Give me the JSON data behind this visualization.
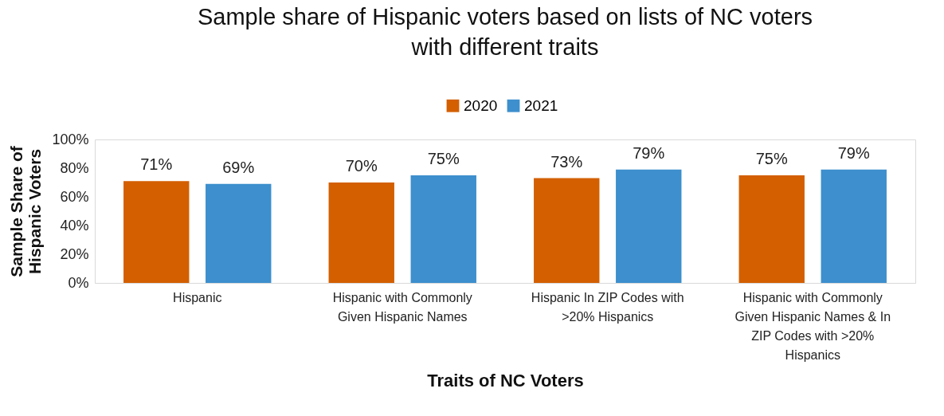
{
  "chart_data": {
    "type": "bar",
    "title": "Sample share of Hispanic voters based on lists of NC voters with different traits",
    "xlabel": "Traits of NC Voters",
    "ylabel": "Sample Share of Hispanic Voters",
    "categories": [
      "Hispanic",
      "Hispanic with Commonly Given Hispanic Names",
      "Hispanic In ZIP Codes with >20% Hispanics",
      "Hispanic with Commonly Given Hispanic Names & In ZIP Codes with >20% Hispanics"
    ],
    "series": [
      {
        "name": "2020",
        "color": "#d35f00",
        "values": [
          71,
          70,
          73,
          75
        ],
        "value_labels": [
          "71%",
          "70%",
          "73%",
          "75%"
        ]
      },
      {
        "name": "2021",
        "color": "#3d8fcd",
        "values": [
          69,
          75,
          79,
          79
        ],
        "value_labels": [
          "69%",
          "75%",
          "79%",
          "79%"
        ]
      }
    ],
    "ylim": [
      0,
      100
    ],
    "yticks": [
      {
        "value": 0,
        "label": "0%"
      },
      {
        "value": 20,
        "label": "20%"
      },
      {
        "value": 40,
        "label": "40%"
      },
      {
        "value": 60,
        "label": "60%"
      },
      {
        "value": 80,
        "label": "80%"
      },
      {
        "value": 100,
        "label": "100%"
      }
    ],
    "grid": false,
    "legend": "top"
  }
}
